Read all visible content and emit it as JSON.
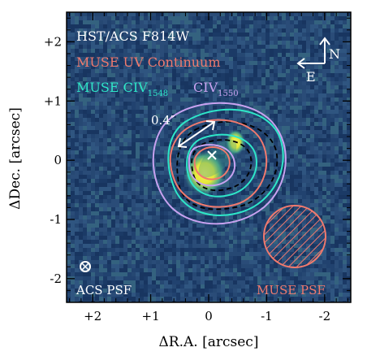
{
  "chart_data": {
    "type": "image",
    "xlabel": "ΔR.A. [arcsec]",
    "ylabel": "ΔDec. [arcsec]",
    "xlim": [
      2.45,
      -2.45
    ],
    "ylim": [
      -2.4,
      2.5
    ],
    "x_ticks": [
      {
        "value": 2,
        "label": "+2"
      },
      {
        "value": 1,
        "label": "+1"
      },
      {
        "value": 0,
        "label": "0"
      },
      {
        "value": -1,
        "label": "-1"
      },
      {
        "value": -2,
        "label": "-2"
      }
    ],
    "y_ticks": [
      {
        "value": 2,
        "label": "+2"
      },
      {
        "value": 1,
        "label": "+1"
      },
      {
        "value": 0,
        "label": "0"
      },
      {
        "value": -1,
        "label": "-1"
      },
      {
        "value": -2,
        "label": "-2"
      }
    ],
    "background_label": "HST/ACS F814W",
    "legend": [
      {
        "text": "MUSE UV Continuum",
        "color": "#f07a6e"
      },
      {
        "text": "MUSE CIV",
        "sub": "1548",
        "color": "#2ee6c8"
      },
      {
        "text": "CIV",
        "sub": "1550",
        "color": "#c8a2f0"
      }
    ],
    "contour_colors": {
      "background": "#1f3d6e",
      "hst_contour": "#000000",
      "uv_continuum": "#f07a6e",
      "civ1548": "#2ee6c8",
      "civ1550": "#c8a2f0",
      "source_glow": "#f2ea3a"
    },
    "scale_bar": {
      "label": "0.4″",
      "length_arcsec": 0.4
    },
    "compass": {
      "north": "N",
      "east": "E"
    },
    "psf": [
      {
        "label": "ACS PSF",
        "color": "#ffffff",
        "center": [
          2.1,
          -1.85
        ]
      },
      {
        "label": "MUSE PSF",
        "color": "#f07a6e",
        "center": [
          -1.35,
          -1.35
        ]
      }
    ]
  }
}
